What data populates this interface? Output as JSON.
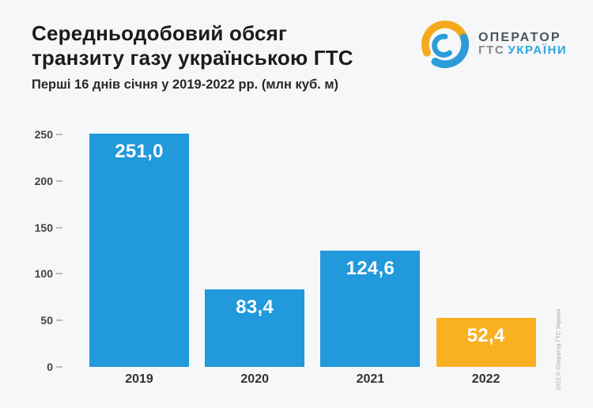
{
  "header": {
    "title_line1": "Середньодобовий обсяг",
    "title_line2": "транзиту газу українською ГТС",
    "subtitle": "Перші 16 днів січня у 2019-2022 рр. (млн куб. м)"
  },
  "logo": {
    "line1": "ОПЕРАТОР",
    "line2_gray": "ГТС",
    "line2_blue": "УКРАЇНИ",
    "swirl_yellow": "#F5A91D",
    "swirl_blue": "#2B9CD8"
  },
  "watermark": "2022 © Оператор ГТС України",
  "colors": {
    "bar_blue": "#2199DB",
    "bar_orange": "#F9B021",
    "background": "#f6f7f8"
  },
  "chart_data": {
    "type": "bar",
    "title": "Середньодобовий обсяг транзиту газу українською ГТС",
    "subtitle": "Перші 16 днів січня у 2019-2022 рр. (млн куб. м)",
    "categories": [
      "2019",
      "2020",
      "2021",
      "2022"
    ],
    "values": [
      251.0,
      83.4,
      124.6,
      52.4
    ],
    "value_labels": [
      "251,0",
      "83,4",
      "124,6",
      "52,4"
    ],
    "bar_colors": [
      "#2199DB",
      "#2199DB",
      "#2199DB",
      "#F9B021"
    ],
    "xlabel": "",
    "ylabel": "",
    "ylim": [
      0,
      250
    ],
    "yticks": [
      0,
      50,
      100,
      150,
      200,
      250
    ],
    "grid": false,
    "legend": false,
    "units": "млн куб. м"
  }
}
